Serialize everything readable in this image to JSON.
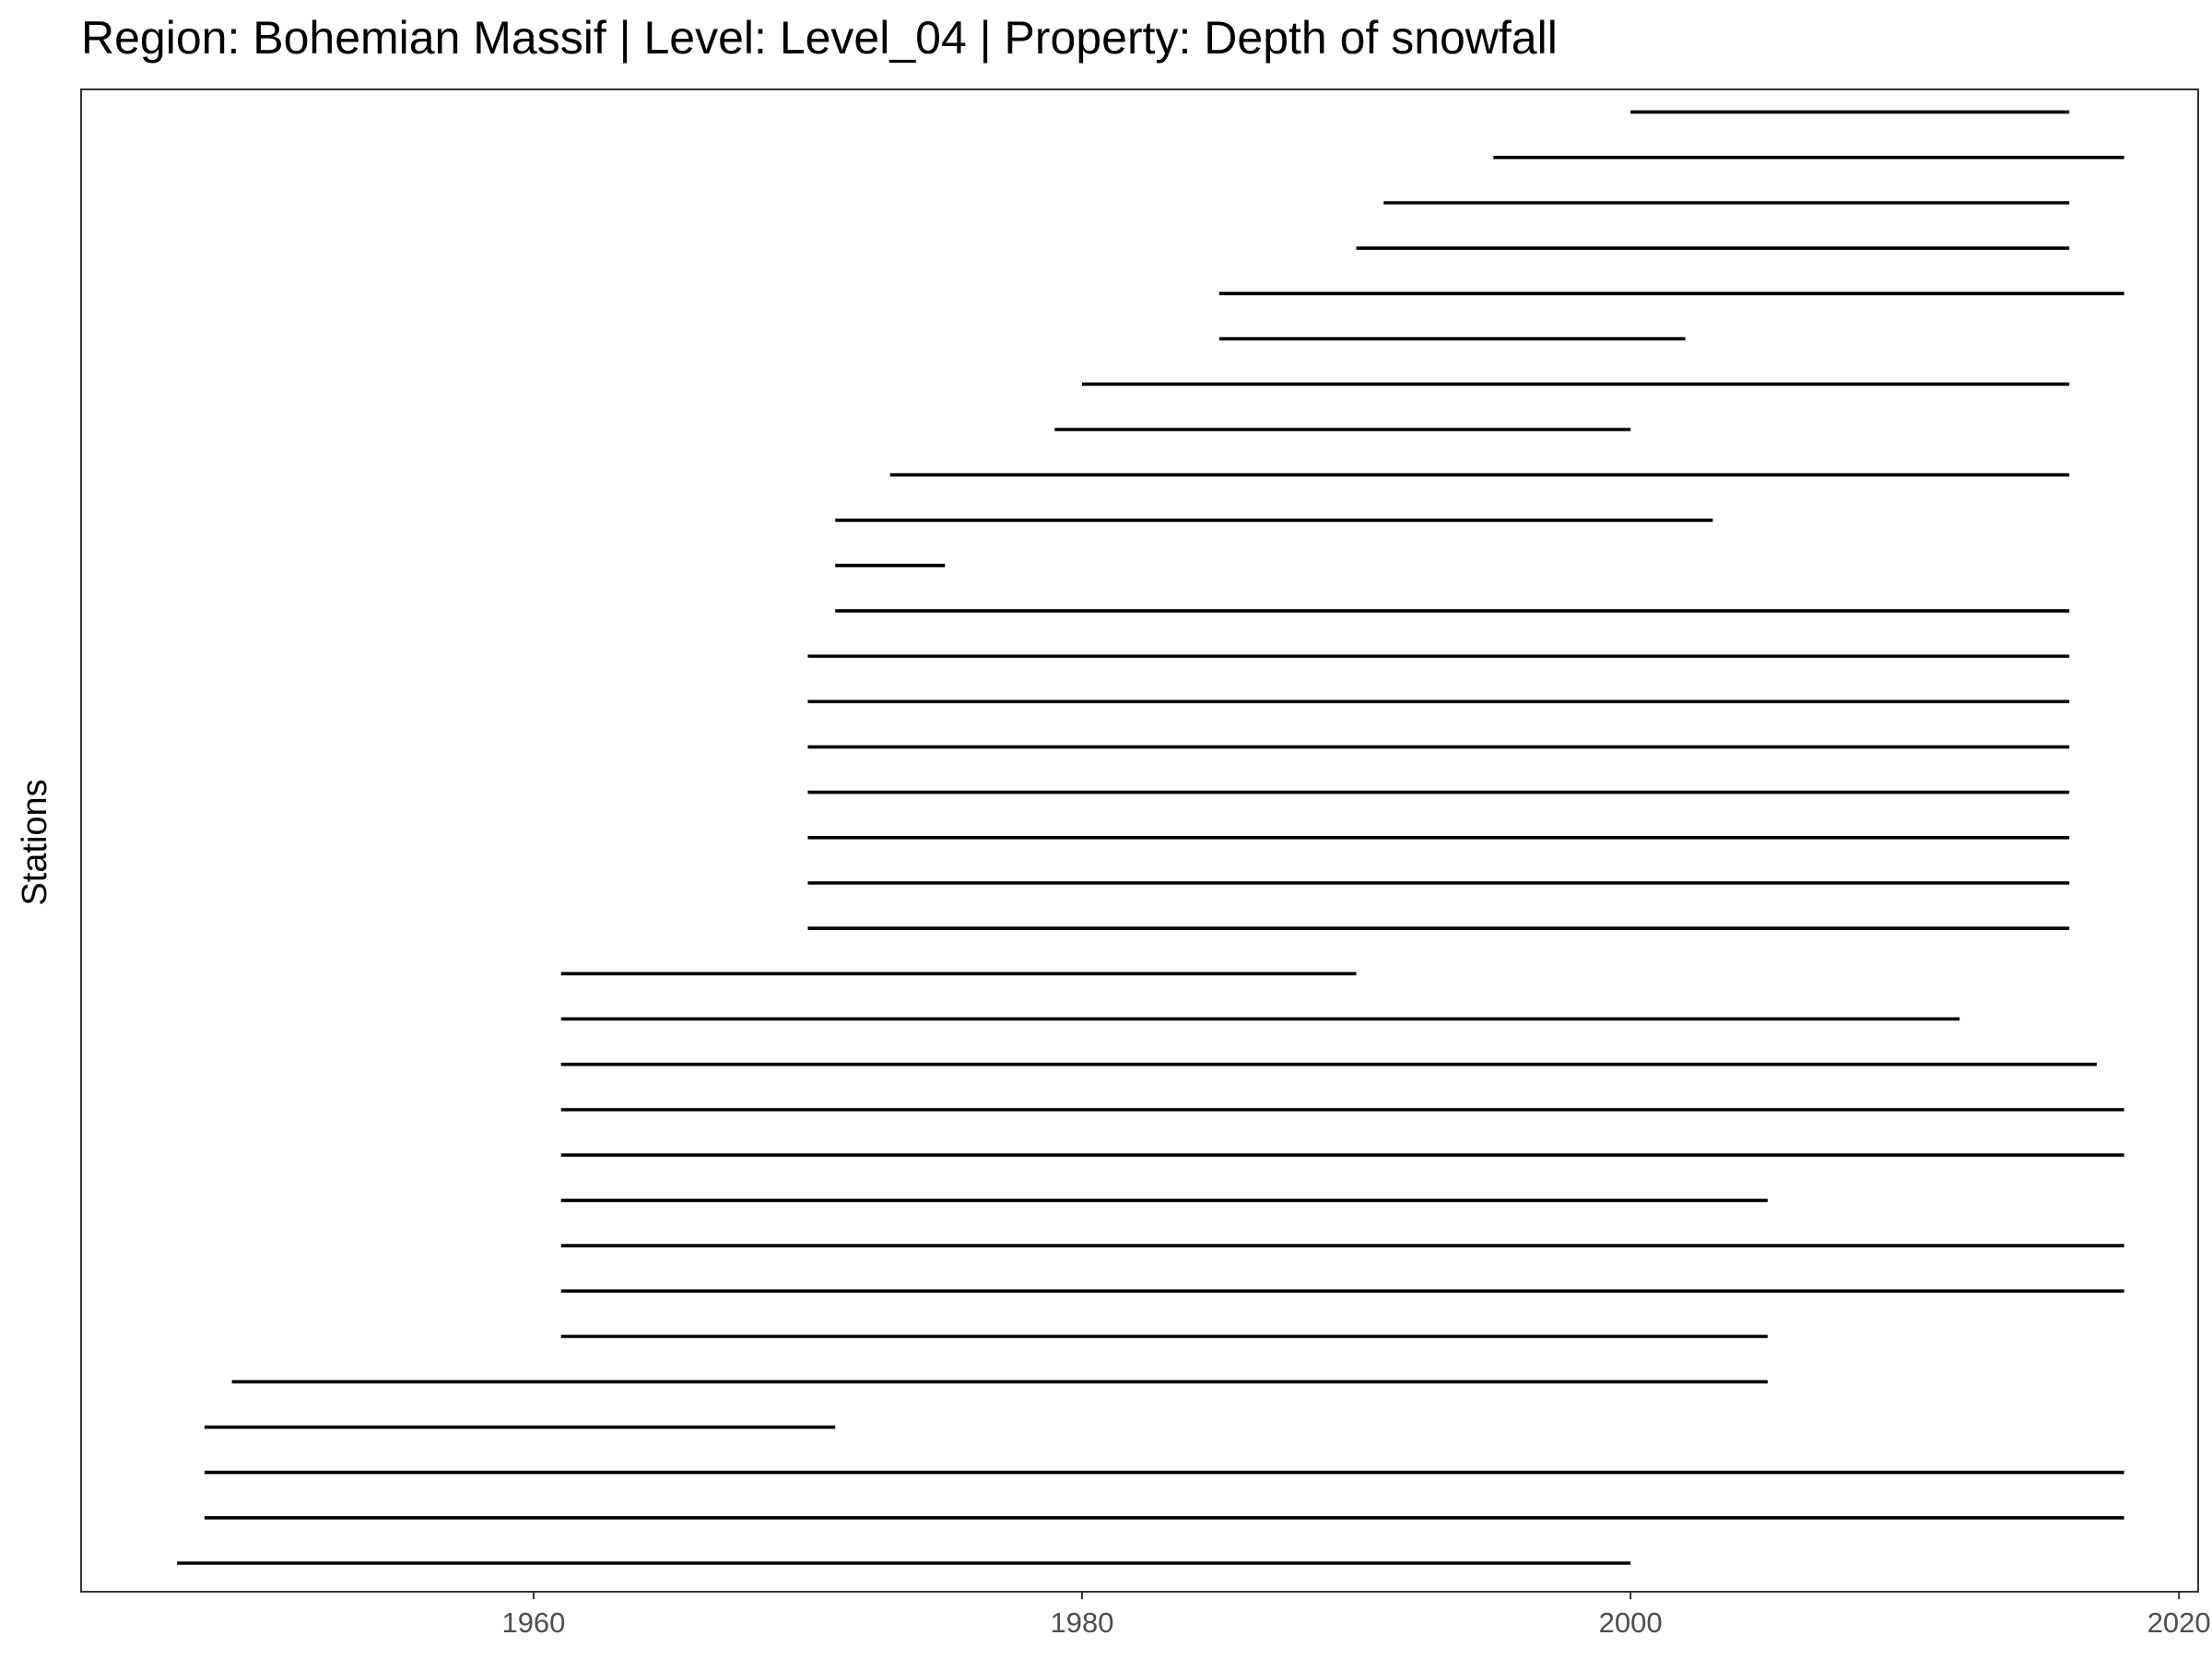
{
  "chart_data": {
    "type": "segment",
    "title": "Region: Bohemian Massif | Level: Level_04 | Property: Depth of snowfall",
    "xlabel": "",
    "ylabel": "Stations",
    "xlim": [
      1943.5,
      2020.7
    ],
    "x_ticks": [
      1960,
      1980,
      2000,
      2020
    ],
    "x_tick_labels": [
      "1960",
      "1980",
      "2000",
      "2020"
    ],
    "grid": false,
    "segment_color": "#000000",
    "segments": [
      {
        "start": 1947,
        "end": 2000
      },
      {
        "start": 1948,
        "end": 2018
      },
      {
        "start": 1948,
        "end": 2018
      },
      {
        "start": 1948,
        "end": 1971
      },
      {
        "start": 1949,
        "end": 2005
      },
      {
        "start": 1961,
        "end": 2005
      },
      {
        "start": 1961,
        "end": 2018
      },
      {
        "start": 1961,
        "end": 2018
      },
      {
        "start": 1961,
        "end": 2005
      },
      {
        "start": 1961,
        "end": 2018
      },
      {
        "start": 1961,
        "end": 2018
      },
      {
        "start": 1961,
        "end": 2017
      },
      {
        "start": 1961,
        "end": 2012
      },
      {
        "start": 1961,
        "end": 1990
      },
      {
        "start": 1970,
        "end": 2016
      },
      {
        "start": 1970,
        "end": 2016
      },
      {
        "start": 1970,
        "end": 2016
      },
      {
        "start": 1970,
        "end": 2016
      },
      {
        "start": 1970,
        "end": 2016
      },
      {
        "start": 1970,
        "end": 2016
      },
      {
        "start": 1970,
        "end": 2016
      },
      {
        "start": 1971,
        "end": 2016
      },
      {
        "start": 1971,
        "end": 1975
      },
      {
        "start": 1971,
        "end": 2003
      },
      {
        "start": 1973,
        "end": 2016
      },
      {
        "start": 1979,
        "end": 2000
      },
      {
        "start": 1980,
        "end": 2016
      },
      {
        "start": 1985,
        "end": 2002
      },
      {
        "start": 1985,
        "end": 2018
      },
      {
        "start": 1990,
        "end": 2016
      },
      {
        "start": 1991,
        "end": 2016
      },
      {
        "start": 1995,
        "end": 2018
      },
      {
        "start": 2000,
        "end": 2016
      }
    ]
  }
}
